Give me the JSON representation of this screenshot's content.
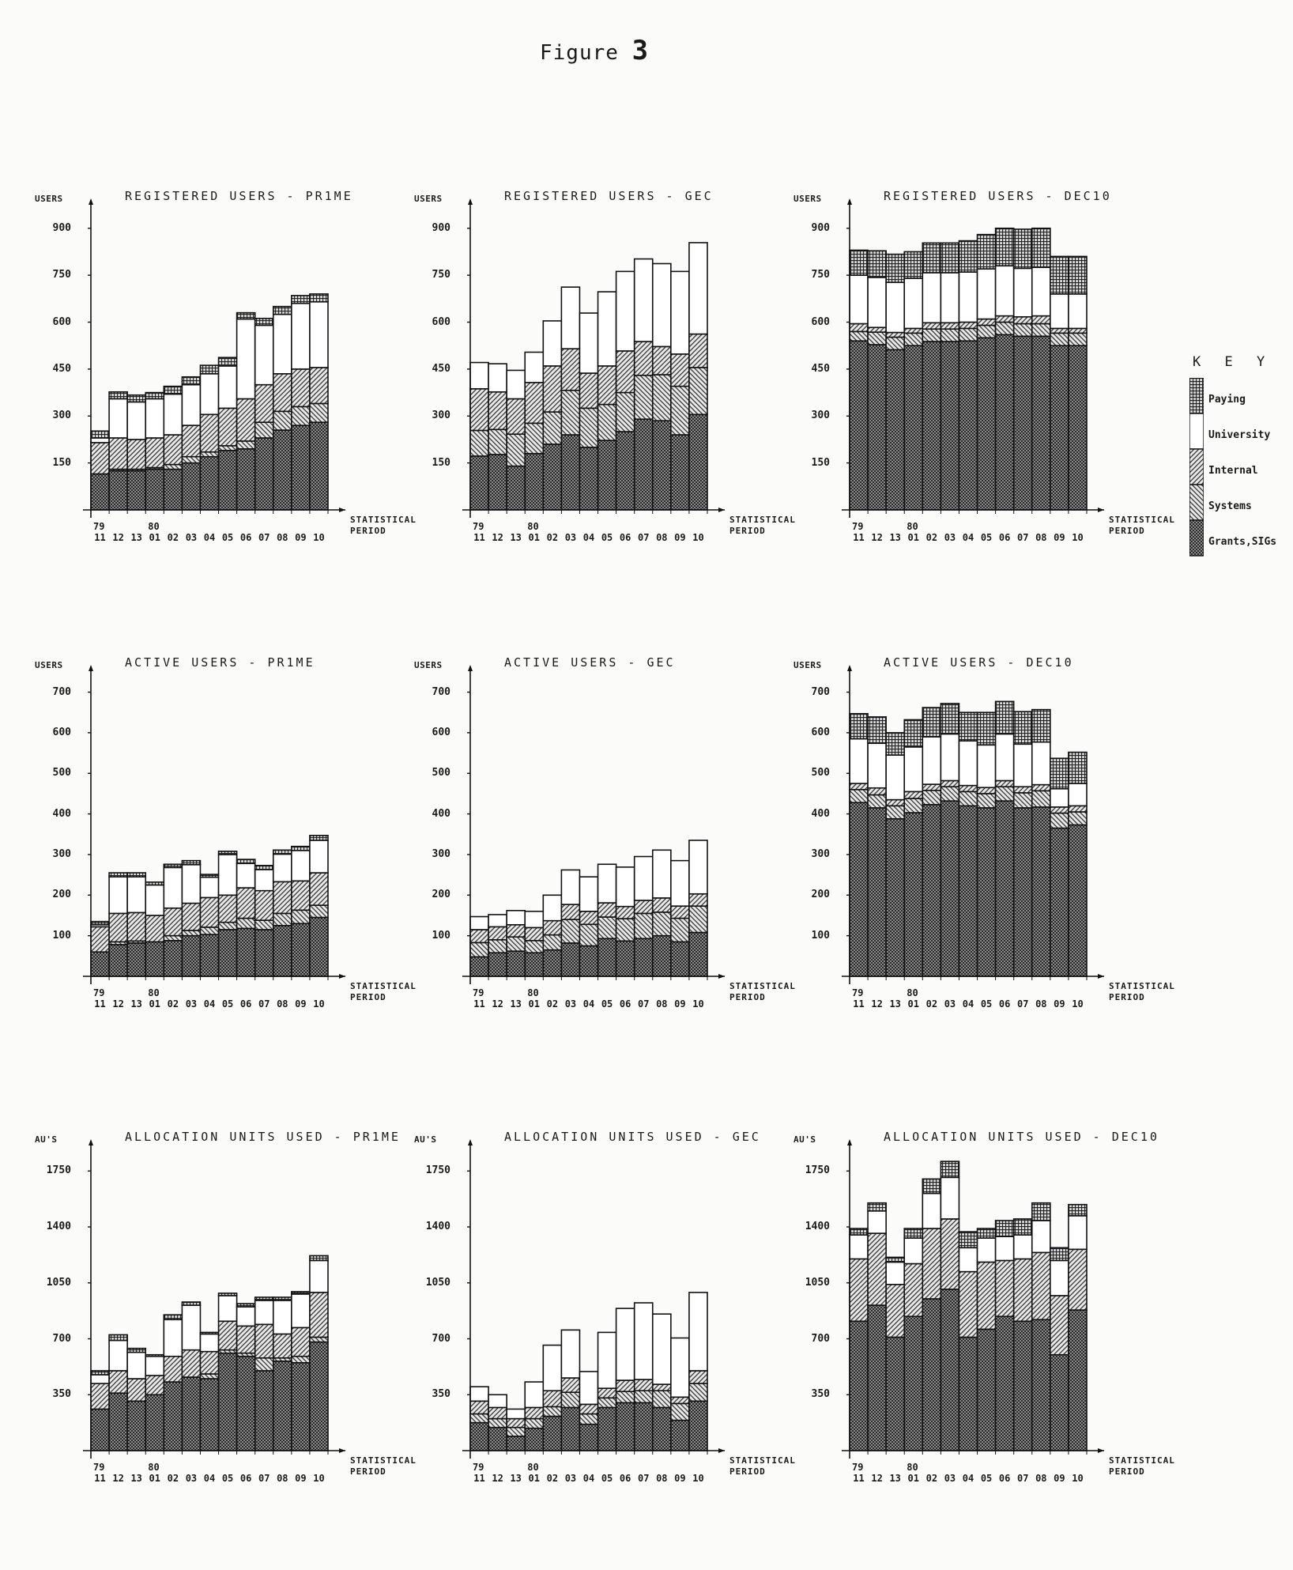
{
  "figure": {
    "title_prefix": "Figure",
    "title_number": "3"
  },
  "x_axis": {
    "label_line1": "STATISTICAL",
    "label_line2": "PERIOD",
    "year_labels": [
      {
        "label": "79",
        "index": 0
      },
      {
        "label": "80",
        "index": 3
      }
    ],
    "categories": [
      "11",
      "12",
      "13",
      "01",
      "02",
      "03",
      "04",
      "05",
      "06",
      "07",
      "08",
      "09",
      "10"
    ]
  },
  "key": {
    "title": "K E Y",
    "items": [
      {
        "label": "Paying",
        "pattern": "paying"
      },
      {
        "label": "University",
        "pattern": "university"
      },
      {
        "label": "Internal",
        "pattern": "internal"
      },
      {
        "label": "Systems",
        "pattern": "systems"
      },
      {
        "label": "Grants,SIGs",
        "pattern": "grants"
      }
    ]
  },
  "chart_data": [
    {
      "id": "reg-prime",
      "type": "bar",
      "stacked": true,
      "title": "REGISTERED USERS - PR1ME",
      "ylabel": "USERS",
      "xlabel": "STATISTICAL PERIOD",
      "ylim": [
        0,
        960
      ],
      "yticks": [
        150,
        300,
        450,
        600,
        750,
        900
      ],
      "categories": [
        "79/11",
        "79/12",
        "79/13",
        "80/01",
        "80/02",
        "80/03",
        "80/04",
        "80/05",
        "80/06",
        "80/07",
        "80/08",
        "80/09",
        "80/10"
      ],
      "series": [
        {
          "name": "Grants,SIGs",
          "values": [
            115,
            125,
            125,
            130,
            130,
            150,
            170,
            190,
            195,
            230,
            255,
            270,
            280
          ]
        },
        {
          "name": "Systems",
          "values": [
            0,
            5,
            5,
            5,
            15,
            20,
            15,
            15,
            25,
            50,
            60,
            60,
            60
          ]
        },
        {
          "name": "Internal",
          "values": [
            100,
            100,
            95,
            95,
            95,
            100,
            120,
            120,
            135,
            120,
            120,
            120,
            115
          ]
        },
        {
          "name": "University",
          "values": [
            15,
            125,
            120,
            125,
            130,
            130,
            130,
            135,
            255,
            190,
            190,
            210,
            210
          ]
        },
        {
          "name": "Paying",
          "values": [
            22,
            22,
            22,
            20,
            25,
            25,
            27,
            27,
            20,
            22,
            25,
            25,
            25
          ]
        }
      ]
    },
    {
      "id": "reg-gec",
      "type": "bar",
      "stacked": true,
      "title": "REGISTERED USERS - GEC",
      "ylabel": "USERS",
      "xlabel": "STATISTICAL PERIOD",
      "ylim": [
        0,
        960
      ],
      "yticks": [
        150,
        300,
        450,
        600,
        750,
        900
      ],
      "categories": [
        "79/11",
        "79/12",
        "79/13",
        "80/01",
        "80/02",
        "80/03",
        "80/04",
        "80/05",
        "80/06",
        "80/07",
        "80/08",
        "80/09",
        "80/10"
      ],
      "series": [
        {
          "name": "Grants,SIGs",
          "values": [
            172,
            177,
            140,
            180,
            210,
            240,
            200,
            222,
            250,
            290,
            285,
            240,
            305
          ]
        },
        {
          "name": "Systems",
          "values": [
            82,
            80,
            102,
            97,
            103,
            142,
            125,
            115,
            125,
            140,
            147,
            155,
            150
          ]
        },
        {
          "name": "Internal",
          "values": [
            133,
            120,
            113,
            130,
            147,
            133,
            112,
            123,
            133,
            108,
            90,
            103,
            107
          ]
        },
        {
          "name": "University",
          "values": [
            84,
            90,
            91,
            97,
            144,
            197,
            192,
            237,
            254,
            264,
            265,
            264,
            292
          ]
        },
        {
          "name": "Paying",
          "values": [
            0,
            0,
            0,
            0,
            0,
            0,
            0,
            0,
            0,
            0,
            0,
            0,
            0
          ]
        }
      ]
    },
    {
      "id": "reg-dec10",
      "type": "bar",
      "stacked": true,
      "title": "REGISTERED USERS - DEC10",
      "ylabel": "USERS",
      "xlabel": "STATISTICAL PERIOD",
      "ylim": [
        0,
        960
      ],
      "yticks": [
        150,
        300,
        450,
        600,
        750,
        900
      ],
      "categories": [
        "79/11",
        "79/12",
        "79/13",
        "80/01",
        "80/02",
        "80/03",
        "80/04",
        "80/05",
        "80/06",
        "80/07",
        "80/08",
        "80/09",
        "80/10"
      ],
      "series": [
        {
          "name": "Grants,SIGs",
          "values": [
            540,
            528,
            512,
            525,
            538,
            538,
            540,
            550,
            560,
            555,
            555,
            525,
            525
          ]
        },
        {
          "name": "Systems",
          "values": [
            30,
            40,
            40,
            40,
            40,
            40,
            40,
            40,
            40,
            40,
            40,
            40,
            40
          ]
        },
        {
          "name": "Internal",
          "values": [
            25,
            15,
            15,
            15,
            20,
            20,
            20,
            20,
            20,
            22,
            25,
            15,
            15
          ]
        },
        {
          "name": "University",
          "values": [
            155,
            160,
            160,
            160,
            160,
            160,
            160,
            160,
            160,
            155,
            155,
            110,
            110
          ]
        },
        {
          "name": "Paying",
          "values": [
            80,
            85,
            90,
            85,
            95,
            95,
            100,
            110,
            120,
            125,
            125,
            120,
            120
          ]
        }
      ]
    },
    {
      "id": "act-prime",
      "type": "bar",
      "stacked": true,
      "title": "ACTIVE USERS - PR1ME",
      "ylabel": "USERS",
      "xlabel": "STATISTICAL PERIOD",
      "ylim": [
        0,
        740
      ],
      "yticks": [
        100,
        200,
        300,
        400,
        500,
        600,
        700
      ],
      "categories": [
        "79/11",
        "79/12",
        "79/13",
        "80/01",
        "80/02",
        "80/03",
        "80/04",
        "80/05",
        "80/06",
        "80/07",
        "80/08",
        "80/09",
        "80/10"
      ],
      "series": [
        {
          "name": "Grants,SIGs",
          "values": [
            60,
            78,
            82,
            85,
            88,
            100,
            103,
            115,
            118,
            115,
            125,
            130,
            145
          ]
        },
        {
          "name": "Systems",
          "values": [
            0,
            7,
            5,
            0,
            12,
            13,
            18,
            18,
            25,
            23,
            30,
            33,
            30
          ]
        },
        {
          "name": "Internal",
          "values": [
            62,
            70,
            70,
            65,
            68,
            67,
            73,
            67,
            75,
            73,
            78,
            72,
            80
          ]
        },
        {
          "name": "University",
          "values": [
            5,
            90,
            88,
            75,
            100,
            95,
            50,
            100,
            60,
            52,
            68,
            75,
            80
          ]
        },
        {
          "name": "Paying",
          "values": [
            8,
            10,
            10,
            7,
            8,
            10,
            7,
            8,
            10,
            10,
            10,
            10,
            12
          ]
        }
      ]
    },
    {
      "id": "act-gec",
      "type": "bar",
      "stacked": true,
      "title": "ACTIVE USERS - GEC",
      "ylabel": "USERS",
      "xlabel": "STATISTICAL PERIOD",
      "ylim": [
        0,
        740
      ],
      "yticks": [
        100,
        200,
        300,
        400,
        500,
        600,
        700
      ],
      "categories": [
        "79/11",
        "79/12",
        "79/13",
        "80/01",
        "80/02",
        "80/03",
        "80/04",
        "80/05",
        "80/06",
        "80/07",
        "80/08",
        "80/09",
        "80/10"
      ],
      "series": [
        {
          "name": "Grants,SIGs",
          "values": [
            48,
            58,
            62,
            58,
            65,
            82,
            75,
            93,
            87,
            93,
            100,
            85,
            108
          ]
        },
        {
          "name": "Systems",
          "values": [
            35,
            32,
            35,
            30,
            37,
            58,
            53,
            53,
            55,
            62,
            58,
            58,
            65
          ]
        },
        {
          "name": "Internal",
          "values": [
            32,
            32,
            30,
            32,
            35,
            37,
            32,
            35,
            30,
            32,
            35,
            30,
            30
          ]
        },
        {
          "name": "University",
          "values": [
            32,
            30,
            35,
            40,
            63,
            85,
            85,
            95,
            97,
            108,
            118,
            112,
            132
          ]
        },
        {
          "name": "Paying",
          "values": [
            0,
            0,
            0,
            0,
            0,
            0,
            0,
            0,
            0,
            0,
            0,
            0,
            0
          ]
        }
      ]
    },
    {
      "id": "act-dec10",
      "type": "bar",
      "stacked": true,
      "title": "ACTIVE USERS - DEC10",
      "ylabel": "USERS",
      "xlabel": "STATISTICAL PERIOD",
      "ylim": [
        0,
        740
      ],
      "yticks": [
        100,
        200,
        300,
        400,
        500,
        600,
        700
      ],
      "categories": [
        "79/11",
        "79/12",
        "79/13",
        "80/01",
        "80/02",
        "80/03",
        "80/04",
        "80/05",
        "80/06",
        "80/07",
        "80/08",
        "80/09",
        "80/10"
      ],
      "series": [
        {
          "name": "Grants,SIGs",
          "values": [
            428,
            415,
            388,
            403,
            423,
            432,
            420,
            415,
            432,
            415,
            417,
            365,
            373
          ]
        },
        {
          "name": "Systems",
          "values": [
            32,
            32,
            32,
            35,
            35,
            35,
            35,
            35,
            35,
            37,
            40,
            37,
            32
          ]
        },
        {
          "name": "Internal",
          "values": [
            15,
            17,
            15,
            17,
            15,
            15,
            15,
            15,
            15,
            15,
            15,
            15,
            15
          ]
        },
        {
          "name": "University",
          "values": [
            110,
            110,
            110,
            110,
            117,
            115,
            110,
            105,
            115,
            105,
            105,
            45,
            55
          ]
        },
        {
          "name": "Paying",
          "values": [
            62,
            65,
            55,
            67,
            72,
            75,
            70,
            80,
            80,
            80,
            80,
            75,
            77
          ]
        }
      ]
    },
    {
      "id": "au-prime",
      "type": "bar",
      "stacked": true,
      "title": "ALLOCATION UNITS USED - PR1ME",
      "ylabel": "AU'S",
      "xlabel": "STATISTICAL PERIOD",
      "ylim": [
        0,
        1880
      ],
      "yticks": [
        350,
        700,
        1050,
        1400,
        1750
      ],
      "categories": [
        "79/11",
        "79/12",
        "79/13",
        "80/01",
        "80/02",
        "80/03",
        "80/04",
        "80/05",
        "80/06",
        "80/07",
        "80/08",
        "80/09",
        "80/10"
      ],
      "series": [
        {
          "name": "Grants,SIGs",
          "values": [
            260,
            360,
            310,
            350,
            430,
            460,
            450,
            610,
            590,
            500,
            560,
            550,
            680
          ]
        },
        {
          "name": "Systems",
          "values": [
            0,
            0,
            0,
            0,
            0,
            0,
            30,
            20,
            20,
            80,
            20,
            40,
            30
          ]
        },
        {
          "name": "Internal",
          "values": [
            160,
            140,
            140,
            120,
            160,
            170,
            140,
            180,
            170,
            210,
            150,
            180,
            280
          ]
        },
        {
          "name": "University",
          "values": [
            55,
            190,
            165,
            120,
            230,
            280,
            110,
            160,
            120,
            150,
            210,
            210,
            200
          ]
        },
        {
          "name": "Paying",
          "values": [
            25,
            35,
            25,
            10,
            30,
            20,
            10,
            15,
            20,
            20,
            20,
            15,
            30
          ]
        }
      ]
    },
    {
      "id": "au-gec",
      "type": "bar",
      "stacked": true,
      "title": "ALLOCATION UNITS USED - GEC",
      "ylabel": "AU'S",
      "xlabel": "STATISTICAL PERIOD",
      "ylim": [
        0,
        1880
      ],
      "yticks": [
        350,
        700,
        1050,
        1400,
        1750
      ],
      "categories": [
        "79/11",
        "79/12",
        "79/13",
        "80/01",
        "80/02",
        "80/03",
        "80/04",
        "80/05",
        "80/06",
        "80/07",
        "80/08",
        "80/09",
        "80/10"
      ],
      "series": [
        {
          "name": "Grants,SIGs",
          "values": [
            175,
            145,
            90,
            140,
            215,
            270,
            165,
            270,
            300,
            300,
            270,
            190,
            310
          ]
        },
        {
          "name": "Systems",
          "values": [
            55,
            55,
            55,
            60,
            60,
            95,
            65,
            60,
            70,
            75,
            105,
            105,
            110
          ]
        },
        {
          "name": "Internal",
          "values": [
            80,
            70,
            55,
            70,
            100,
            90,
            60,
            60,
            70,
            70,
            40,
            40,
            80
          ]
        },
        {
          "name": "University",
          "values": [
            90,
            80,
            60,
            160,
            285,
            300,
            205,
            350,
            450,
            480,
            440,
            370,
            490
          ]
        },
        {
          "name": "Paying",
          "values": [
            0,
            0,
            0,
            0,
            0,
            0,
            0,
            0,
            0,
            0,
            0,
            0,
            0
          ]
        }
      ]
    },
    {
      "id": "au-dec10",
      "type": "bar",
      "stacked": true,
      "title": "ALLOCATION UNITS USED - DEC10",
      "ylabel": "AU'S",
      "xlabel": "STATISTICAL PERIOD",
      "ylim": [
        0,
        1880
      ],
      "yticks": [
        350,
        700,
        1050,
        1400,
        1750
      ],
      "categories": [
        "79/11",
        "79/12",
        "79/13",
        "80/01",
        "80/02",
        "80/03",
        "80/04",
        "80/05",
        "80/06",
        "80/07",
        "80/08",
        "80/09",
        "80/10"
      ],
      "series": [
        {
          "name": "Grants,SIGs",
          "values": [
            810,
            910,
            710,
            840,
            950,
            1010,
            710,
            760,
            840,
            810,
            820,
            600,
            880
          ]
        },
        {
          "name": "Systems",
          "values": [
            0,
            0,
            0,
            0,
            0,
            0,
            0,
            0,
            0,
            0,
            0,
            0,
            0
          ]
        },
        {
          "name": "Internal",
          "values": [
            390,
            450,
            330,
            330,
            440,
            440,
            410,
            420,
            350,
            390,
            420,
            370,
            380
          ]
        },
        {
          "name": "University",
          "values": [
            150,
            140,
            140,
            160,
            220,
            260,
            150,
            150,
            150,
            150,
            200,
            220,
            210
          ]
        },
        {
          "name": "Paying",
          "values": [
            40,
            50,
            30,
            60,
            90,
            100,
            100,
            60,
            100,
            100,
            110,
            80,
            70
          ]
        }
      ]
    }
  ]
}
